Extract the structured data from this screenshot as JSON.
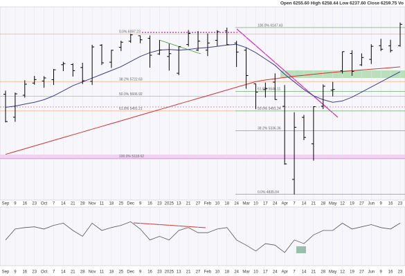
{
  "chart_data": [
    {
      "type": "ohlc",
      "header": "Open 6255.60 High 6258.44 Low 6237.60 Close 6259.75 Vo",
      "categories": [
        "Sep",
        "9",
        "16",
        "23",
        "Oct",
        "7",
        "14",
        "21",
        "28",
        "Nov",
        "11",
        "18",
        "25",
        "Dec",
        "9",
        "16",
        "23",
        "2025",
        "13",
        "21",
        "27",
        "Feb",
        "10",
        "18",
        "24",
        "Mar",
        "10",
        "17",
        "24",
        "Apr",
        "7",
        "14",
        "21",
        "28",
        "May",
        "12",
        "19",
        "27",
        "Jun",
        "9",
        "16",
        "23"
      ],
      "open": [
        5623,
        5442,
        5615,
        5711,
        5727,
        5737,
        5855,
        5857,
        5833,
        5724,
        6009,
        5875,
        5992,
        6040,
        6083,
        6063,
        5940,
        5920,
        5788,
        6014,
        5970,
        5970,
        6047,
        6121,
        6026,
        5969,
        5705,
        5659,
        5718,
        5528,
        4953,
        5441,
        5233,
        5529,
        5655,
        5808,
        5944,
        5854,
        5897,
        6005,
        6004,
        6005
      ],
      "high": [
        5651,
        5636,
        5733,
        5767,
        5765,
        5822,
        5878,
        5866,
        5870,
        6012,
        6017,
        5972,
        6044,
        6099,
        6085,
        6085,
        6049,
        6021,
        6000,
        6128,
        6120,
        6101,
        6128,
        6147,
        6043,
        5987,
        5705,
        5715,
        5787,
        5695,
        5481,
        5460,
        5528,
        5700,
        5720,
        5959,
        5969,
        5944,
        6016,
        6059,
        6051,
        6187
      ],
      "low": [
        5402,
        5406,
        5596,
        5698,
        5674,
        5696,
        5805,
        5762,
        5703,
        5696,
        5853,
        5830,
        5963,
        6027,
        6024,
        5832,
        5932,
        5809,
        5773,
        5999,
        5962,
        5923,
        6003,
        6009,
        5837,
        5666,
        5505,
        5597,
        5580,
        5069,
        4835,
        5262,
        5101,
        5506,
        5606,
        5786,
        5768,
        5845,
        5861,
        5963,
        5952,
        5997
      ],
      "close": [
        5408,
        5626,
        5702,
        5738,
        5751,
        5815,
        5864,
        5808,
        5729,
        5995,
        5870,
        5969,
        6032,
        6090,
        6051,
        5930,
        5971,
        5942,
        5997,
        6101,
        6041,
        6026,
        6115,
        6013,
        5955,
        5770,
        5639,
        5668,
        5581,
        5074,
        5363,
        5283,
        5525,
        5686,
        5660,
        5958,
        5803,
        5912,
        6000,
        5977,
        5967,
        6173
      ],
      "color": "#000000",
      "ylim": [
        4790,
        6310
      ],
      "series": [
        {
          "color": "#3b3b8f",
          "values": [
            5520,
            5530,
            5545,
            5560,
            5580,
            5610,
            5650,
            5690,
            5720,
            5750,
            5780,
            5810,
            5840,
            5880,
            5920,
            5950,
            5970,
            5975,
            5970,
            5975,
            5985,
            5990,
            6000,
            6010,
            6015,
            5990,
            5950,
            5900,
            5850,
            5780,
            5720,
            5660,
            5610,
            5580,
            5560,
            5570,
            5600,
            5640,
            5680,
            5720,
            5760,
            5800
          ]
        },
        {
          "color": "#d03030",
          "values": [
            5150,
            5172,
            5194,
            5216,
            5238,
            5260,
            5282,
            5304,
            5326,
            5348,
            5370,
            5392,
            5414,
            5436,
            5458,
            5480,
            5502,
            5524,
            5546,
            5568,
            5590,
            5612,
            5634,
            5656,
            5678,
            5700,
            5722,
            5735,
            5745,
            5755,
            5765,
            5772,
            5780,
            5788,
            5795,
            5802,
            5808,
            5814,
            5820,
            5826,
            5832,
            5838
          ]
        }
      ],
      "fib_left": [
        {
          "value": 6097.23,
          "label": "0.0% 6097.23"
        },
        {
          "value": 5722.63,
          "label": "38.2% 5722.63"
        },
        {
          "value": 5606.92,
          "label": "50.0% 5606.92"
        },
        {
          "value": 5491.21,
          "label": "61.8% 5491.21"
        },
        {
          "value": 5118.62,
          "label": "100.0% 5118.62"
        }
      ],
      "fib_right": [
        {
          "value": 6147.43,
          "label": "100.0% 6147.43"
        },
        {
          "value": 5646.11,
          "label": "61.8% 5646.11"
        },
        {
          "value": 5491.24,
          "label": "50.0% 5491.24"
        },
        {
          "value": 5336.36,
          "label": "38.2% 5336.36"
        },
        {
          "value": 4835.04,
          "label": "0.0% 4835.04"
        }
      ]
    },
    {
      "type": "line",
      "categories": [
        "Sep",
        "9",
        "16",
        "23",
        "Oct",
        "7",
        "14",
        "21",
        "28",
        "Nov",
        "11",
        "18",
        "25",
        "Dec",
        "9",
        "16",
        "23",
        "2025",
        "13",
        "21",
        "27",
        "Feb",
        "10",
        "18",
        "24",
        "Mar",
        "10",
        "17",
        "24",
        "Apr",
        "7",
        "14",
        "21",
        "28",
        "May",
        "12",
        "19",
        "27",
        "Jun",
        "9",
        "16",
        "23"
      ],
      "values": [
        45,
        60,
        62,
        63,
        60,
        65,
        68,
        58,
        50,
        68,
        58,
        62,
        65,
        70,
        60,
        45,
        50,
        45,
        58,
        62,
        55,
        55,
        60,
        62,
        45,
        38,
        30,
        40,
        38,
        28,
        45,
        40,
        52,
        58,
        58,
        68,
        60,
        63,
        66,
        62,
        60,
        68
      ],
      "color": "#555555",
      "ylim": [
        10,
        90
      ]
    }
  ]
}
